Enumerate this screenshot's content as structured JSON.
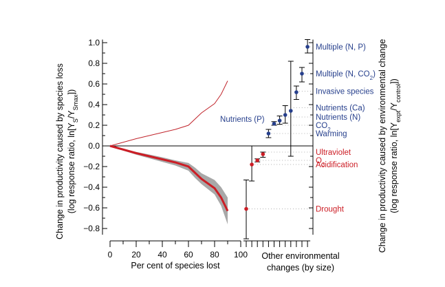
{
  "chart_data": {
    "type": "line",
    "title": "",
    "colors": {
      "blue": "#263f8c",
      "red": "#cc1d25",
      "band": "#a8a8a8",
      "thin": "#c0232a",
      "axis": "#000000",
      "dots": "#b0b0b0"
    },
    "y_axis": {
      "ylim": [
        -0.9,
        1.03
      ],
      "ticks": [
        "1.0",
        "0.8",
        "0.6",
        "0.4",
        "0.2",
        "0.0",
        "−0.2",
        "−0.4",
        "−0.6",
        "−0.8"
      ],
      "tick_values": [
        1.0,
        0.8,
        0.6,
        0.4,
        0.2,
        0.0,
        -0.2,
        -0.4,
        -0.6,
        -0.8
      ],
      "label_left_line1": "Change in productivity caused by species loss",
      "label_left_line2": "(log response ratio, ln[Y",
      "label_left_sub1": "S",
      "label_left_mid": "/Y",
      "label_left_sub2": "Smax",
      "label_left_end": "])",
      "label_right_line1": "Change in productivity caused by environmental change",
      "label_right_line2": "(log response ratio, ln[Y",
      "label_right_sub1": "expt",
      "label_right_mid": "/Y",
      "label_right_sub2": "control",
      "label_right_end": "])"
    },
    "x_axis": {
      "xlim": [
        0,
        100
      ],
      "ticks": [
        "0",
        "20",
        "40",
        "60",
        "80",
        "100"
      ],
      "tick_values": [
        0,
        20,
        40,
        60,
        80,
        100
      ],
      "label": "Per cent of species lost",
      "other_label_line1": "Other environmental",
      "other_label_line2": "changes (by size)"
    },
    "series": [
      {
        "name": "species loss productivity (mean)",
        "x": [
          0,
          10,
          20,
          30,
          40,
          50,
          60,
          65,
          70,
          80,
          85,
          90
        ],
        "y": [
          0,
          -0.035,
          -0.07,
          -0.1,
          -0.13,
          -0.16,
          -0.2,
          -0.26,
          -0.32,
          -0.41,
          -0.5,
          -0.63
        ],
        "band_low": [
          0,
          -0.045,
          -0.085,
          -0.12,
          -0.155,
          -0.19,
          -0.24,
          -0.31,
          -0.37,
          -0.47,
          -0.58,
          -0.76
        ],
        "band_high": [
          0,
          -0.028,
          -0.058,
          -0.083,
          -0.11,
          -0.14,
          -0.165,
          -0.21,
          -0.265,
          -0.33,
          -0.4,
          -0.5
        ]
      },
      {
        "name": "species loss productivity (inverse reference)",
        "x": [
          0,
          10,
          20,
          30,
          40,
          50,
          60,
          65,
          70,
          80,
          85,
          90
        ],
        "y": [
          0,
          0.035,
          0.07,
          0.1,
          0.13,
          0.16,
          0.2,
          0.26,
          0.32,
          0.41,
          0.5,
          0.63
        ]
      }
    ],
    "environmental_changes": [
      {
        "label": "Drought",
        "label_color": "red",
        "value": -0.61,
        "err_low": -0.9,
        "err_high": -0.33,
        "label_y": -0.61
      },
      {
        "label": "Acidification",
        "label_color": "red",
        "value": -0.18,
        "err_low": -0.34,
        "err_high": 0.0,
        "label_y": -0.18
      },
      {
        "label": "O",
        "label_sub": "3",
        "label_color": "red",
        "value": -0.14,
        "err_low": -0.155,
        "err_high": -0.125,
        "label_y": -0.14
      },
      {
        "label": "Ultraviolet",
        "label_color": "red",
        "value": -0.08,
        "err_low": -0.11,
        "err_high": -0.06,
        "label_y": -0.06
      },
      {
        "label": "Warming",
        "label_color": "blue",
        "value": 0.12,
        "err_low": 0.08,
        "err_high": 0.16,
        "label_y": 0.12
      },
      {
        "label": "CO",
        "label_sub": "2",
        "label_color": "blue",
        "value": 0.215,
        "err_low": 0.2,
        "err_high": 0.235,
        "label_y": 0.2
      },
      {
        "label": "Nutrients (P)",
        "label_color": "blue",
        "value": 0.245,
        "err_low": 0.21,
        "err_high": 0.29,
        "label_y": 0.26,
        "label_side": "left"
      },
      {
        "label": "Nutrients (N)",
        "label_color": "blue",
        "value": 0.3,
        "err_low": 0.22,
        "err_high": 0.39,
        "label_y": 0.28
      },
      {
        "label": "Nutrients (Ca)",
        "label_color": "blue",
        "value": 0.34,
        "err_low": -0.1,
        "err_high": 0.82,
        "label_y": 0.37
      },
      {
        "label": "Invasive species",
        "label_color": "blue",
        "value": 0.52,
        "err_low": 0.45,
        "err_high": 0.58,
        "label_y": 0.53
      },
      {
        "label": "Multiple (N, CO",
        "label_sub": "2",
        "label_end": ")",
        "label_color": "blue",
        "value": 0.7,
        "err_low": 0.62,
        "err_high": 0.76,
        "label_y": 0.7
      },
      {
        "label": "Multiple (N, P)",
        "label_color": "blue",
        "value": 0.96,
        "err_low": 0.9,
        "err_high": 1.03,
        "label_y": 0.96
      }
    ]
  }
}
